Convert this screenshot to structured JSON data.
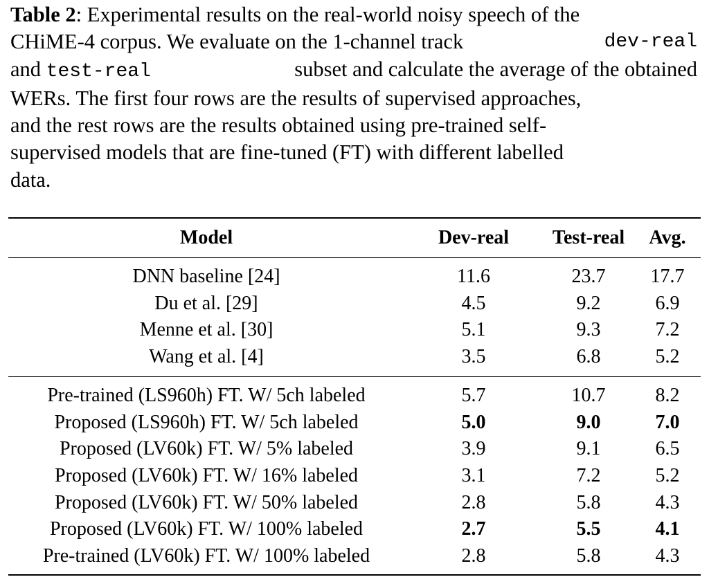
{
  "caption": {
    "label": "Table 2",
    "l1": ": Experimental results on the real-world noisy speech of the",
    "l2": "CHiME-4 corpus.  We evaluate on the 1-channel track ",
    "l2_code": "dev-real",
    "l3a": "and ",
    "l3_code": "test-real",
    "l3b": " subset and calculate the average of the obtained",
    "l4": "WERs. The first four rows are the results of supervised approaches,",
    "l5": "and the rest rows are the results obtained using pre-trained self-",
    "l6": "supervised models that are fine-tuned (FT) with different labelled",
    "l7": "data."
  },
  "table": {
    "headers": [
      "Model",
      "Dev-real",
      "Test-real",
      "Avg."
    ],
    "supervised": [
      {
        "model": "DNN baseline [24]",
        "dev": "11.6",
        "test": "23.7",
        "avg": "17.7"
      },
      {
        "model": "Du et al. [29]",
        "dev": "4.5",
        "test": "9.2",
        "avg": "6.9"
      },
      {
        "model": "Menne et al. [30]",
        "dev": "5.1",
        "test": "9.3",
        "avg": "7.2"
      },
      {
        "model": "Wang et al. [4]",
        "dev": "3.5",
        "test": "6.8",
        "avg": "5.2"
      }
    ],
    "self_supervised": [
      {
        "model": "Pre-trained (LS960h) FT. W/ 5ch labeled",
        "dev": "5.7",
        "test": "10.7",
        "avg": "8.2"
      },
      {
        "model": "Proposed (LS960h) FT. W/ 5ch labeled",
        "dev": "5.0",
        "test": "9.0",
        "avg": "7.0"
      },
      {
        "model": "Proposed (LV60k) FT. W/ 5% labeled",
        "dev": "3.9",
        "test": "9.1",
        "avg": "6.5"
      },
      {
        "model": "Proposed (LV60k) FT. W/ 16% labeled",
        "dev": "3.1",
        "test": "7.2",
        "avg": "5.2"
      },
      {
        "model": "Proposed (LV60k) FT. W/ 50% labeled",
        "dev": "2.8",
        "test": "5.8",
        "avg": "4.3"
      },
      {
        "model": "Proposed (LV60k) FT. W/ 100% labeled",
        "dev": "2.7",
        "test": "5.5",
        "avg": "4.1"
      },
      {
        "model": "Pre-trained (LV60k) FT. W/ 100% labeled",
        "dev": "2.8",
        "test": "5.8",
        "avg": "4.3"
      }
    ]
  }
}
